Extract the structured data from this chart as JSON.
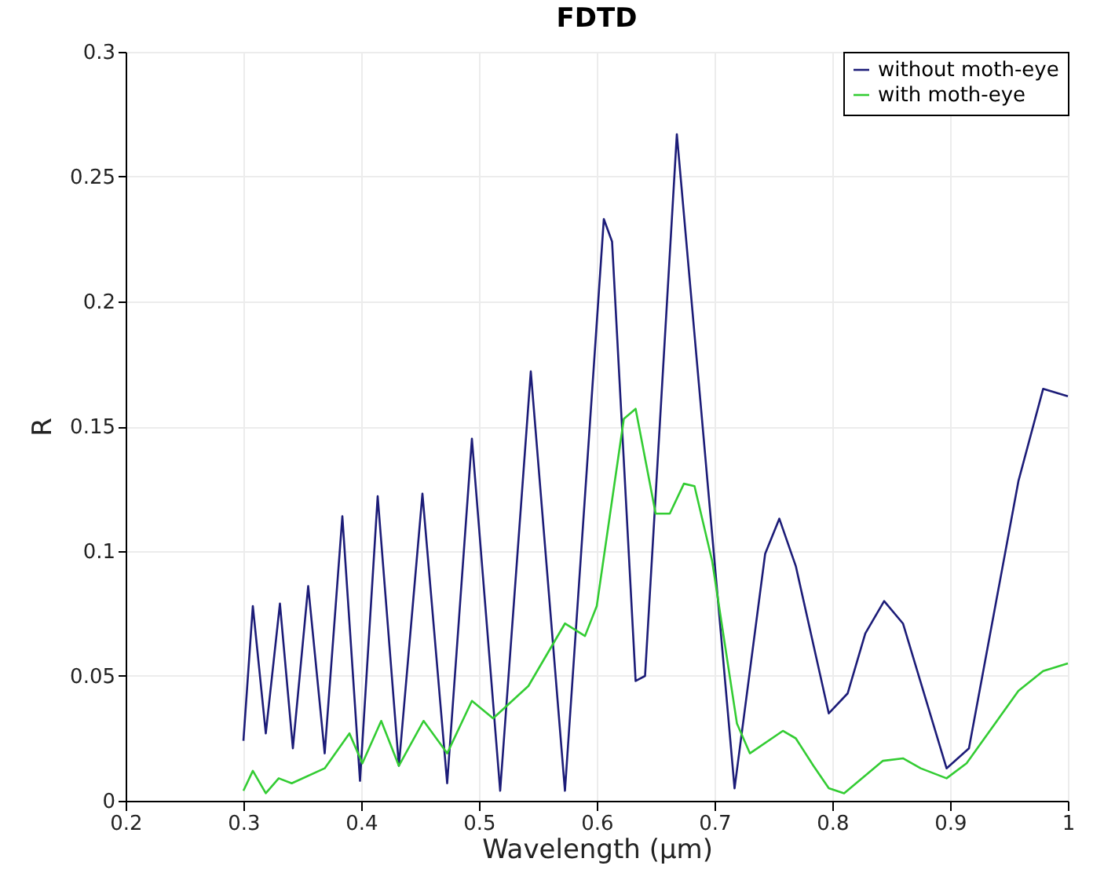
{
  "chart_data": {
    "type": "line",
    "title": "FDTD",
    "xlabel": "Wavelength (µm)",
    "ylabel": "R",
    "xlim": [
      0.2,
      1.0
    ],
    "xticks": [
      0.2,
      0.3,
      0.4,
      0.5,
      0.6,
      0.7,
      0.8,
      0.9,
      1
    ],
    "ylim": [
      0,
      0.3
    ],
    "yticks": [
      0,
      0.05,
      0.1,
      0.15,
      0.2,
      0.25,
      0.3
    ],
    "grid": true,
    "legend": "top right",
    "line_style": "solid",
    "series": [
      {
        "name": "without moth-eye",
        "color": "#1c1c78",
        "x": [
          0.3,
          0.308,
          0.319,
          0.331,
          0.342,
          0.355,
          0.369,
          0.384,
          0.399,
          0.414,
          0.432,
          0.452,
          0.473,
          0.494,
          0.518,
          0.544,
          0.573,
          0.606,
          0.613,
          0.633,
          0.641,
          0.668,
          0.717,
          0.743,
          0.755,
          0.769,
          0.797,
          0.813,
          0.828,
          0.844,
          0.86,
          0.897,
          0.916,
          0.958,
          0.979,
          1.0
        ],
        "values": [
          0.024,
          0.078,
          0.027,
          0.079,
          0.021,
          0.086,
          0.019,
          0.114,
          0.008,
          0.122,
          0.014,
          0.123,
          0.007,
          0.145,
          0.004,
          0.172,
          0.004,
          0.233,
          0.224,
          0.048,
          0.05,
          0.267,
          0.005,
          0.099,
          0.113,
          0.094,
          0.035,
          0.043,
          0.067,
          0.08,
          0.071,
          0.013,
          0.021,
          0.128,
          0.165,
          0.162
        ]
      },
      {
        "name": "with moth-eye",
        "color": "#33cc33",
        "x": [
          0.3,
          0.308,
          0.319,
          0.33,
          0.341,
          0.369,
          0.39,
          0.401,
          0.417,
          0.432,
          0.453,
          0.473,
          0.494,
          0.512,
          0.542,
          0.573,
          0.59,
          0.6,
          0.623,
          0.633,
          0.65,
          0.662,
          0.674,
          0.683,
          0.698,
          0.719,
          0.73,
          0.758,
          0.769,
          0.784,
          0.797,
          0.81,
          0.843,
          0.86,
          0.875,
          0.897,
          0.914,
          0.958,
          0.979,
          1.0
        ],
        "values": [
          0.004,
          0.012,
          0.003,
          0.009,
          0.007,
          0.013,
          0.027,
          0.015,
          0.032,
          0.014,
          0.032,
          0.019,
          0.04,
          0.033,
          0.046,
          0.071,
          0.066,
          0.078,
          0.153,
          0.157,
          0.115,
          0.115,
          0.127,
          0.126,
          0.096,
          0.031,
          0.019,
          0.028,
          0.025,
          0.014,
          0.005,
          0.003,
          0.016,
          0.017,
          0.013,
          0.009,
          0.015,
          0.044,
          0.052,
          0.055
        ]
      }
    ]
  }
}
